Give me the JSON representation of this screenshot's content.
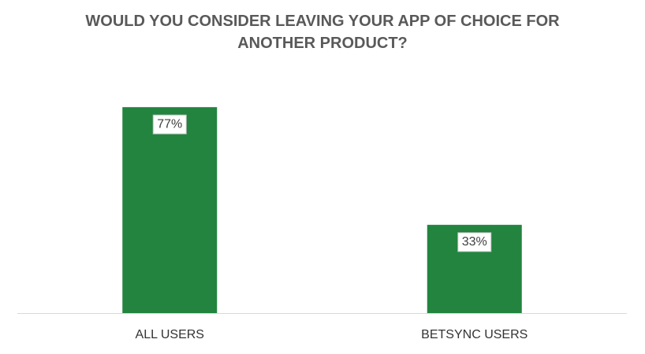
{
  "chart_data": {
    "type": "bar",
    "title": "WOULD YOU CONSIDER LEAVING YOUR APP OF CHOICE FOR ANOTHER PRODUCT?",
    "categories": [
      "ALL USERS",
      "BETSYNC USERS"
    ],
    "values": [
      77,
      33
    ],
    "value_labels": [
      "77%",
      "33%"
    ],
    "color": "#22843f"
  }
}
